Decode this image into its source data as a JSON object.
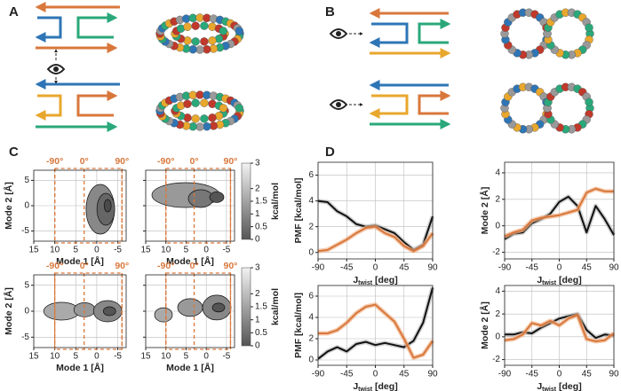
{
  "panel_labels": [
    "A",
    "B",
    "C",
    "D"
  ],
  "chart_data": [
    {
      "type": "contour",
      "xlabel": "Mode 1 [Å]",
      "ylabel": "Mode 2 [Å]",
      "xlim": [
        15,
        -7
      ],
      "ylim": [
        -7,
        7
      ],
      "xticks": [
        15,
        10,
        5,
        0,
        -5
      ],
      "yticks": [
        -5,
        0,
        5
      ],
      "ytick_labels": true,
      "grid": true,
      "angle_marks": [
        {
          "value": 10,
          "label": "-90°"
        },
        {
          "value": 3,
          "label": "0°"
        },
        {
          "value": -6,
          "label": "90°"
        }
      ]
    },
    {
      "type": "contour",
      "xlabel": "Mode 1 [Å]",
      "xlim": [
        15,
        -7
      ],
      "ylim": [
        -7,
        7
      ],
      "xticks": [
        15,
        10,
        5,
        0,
        -5
      ],
      "yticks": [
        -5,
        0,
        5
      ],
      "ytick_labels": false,
      "grid": true,
      "angle_marks": [
        {
          "value": 10,
          "label": "-90°"
        },
        {
          "value": 3,
          "label": "0°"
        },
        {
          "value": -6,
          "label": "90°"
        }
      ],
      "colorbar": {
        "label": "kcal/mol",
        "lim": [
          0,
          3
        ],
        "ticks": [
          0,
          0.5,
          1,
          1.5,
          2,
          3
        ]
      }
    },
    {
      "type": "contour",
      "xlabel": "Mode 1 [Å]",
      "ylabel": "Mode 2 [Å]",
      "xlim": [
        15,
        -7
      ],
      "ylim": [
        -7,
        7
      ],
      "xticks": [
        15,
        10,
        5,
        0,
        -5
      ],
      "yticks": [
        -5,
        0,
        5
      ],
      "ytick_labels": true,
      "grid": true,
      "angle_marks": [
        {
          "value": 10,
          "label": "-90°"
        },
        {
          "value": 3,
          "label": "0°"
        },
        {
          "value": -6,
          "label": "90°"
        }
      ]
    },
    {
      "type": "contour",
      "xlabel": "Mode 1 [Å]",
      "xlim": [
        15,
        -7
      ],
      "ylim": [
        -7,
        7
      ],
      "xticks": [
        15,
        10,
        5,
        0,
        -5
      ],
      "yticks": [
        -5,
        0,
        5
      ],
      "ytick_labels": false,
      "grid": true,
      "angle_marks": [
        {
          "value": 10,
          "label": "-90°"
        },
        {
          "value": 3,
          "label": "0°"
        },
        {
          "value": -6,
          "label": "90°"
        }
      ],
      "colorbar": {
        "label": "kcal/mol",
        "lim": [
          0,
          3
        ],
        "ticks": [
          0,
          0.5,
          1,
          1.5,
          2,
          3
        ]
      }
    },
    {
      "type": "line",
      "xlabel": [
        "J",
        "twist",
        " [deg]"
      ],
      "ylabel": "PMF [kcal/mol]",
      "xlim": [
        -90,
        90
      ],
      "xticks": [
        -90,
        -45,
        0,
        45,
        90
      ],
      "ylim": [
        -0.5,
        7
      ],
      "yticks": [
        0,
        2,
        4,
        6
      ],
      "grid": true,
      "x": [
        -90,
        -75,
        -60,
        -45,
        -30,
        -15,
        0,
        15,
        30,
        45,
        60,
        75,
        90
      ],
      "series": [
        {
          "color": "#111111",
          "values": [
            4,
            3.9,
            3.2,
            2.8,
            2.2,
            2.0,
            2.1,
            1.8,
            1.5,
            0.8,
            0.2,
            0.6,
            2.8
          ]
        },
        {
          "color": "#d9773b",
          "values": [
            0.1,
            0.2,
            0.6,
            1.0,
            1.5,
            1.9,
            2.0,
            1.5,
            1.2,
            0.5,
            0.1,
            0.5,
            1.5
          ]
        }
      ]
    },
    {
      "type": "line",
      "xlabel": [
        "J",
        "twist",
        " [deg]"
      ],
      "ylabel": "Mode 2 [Å]",
      "xlim": [
        -90,
        90
      ],
      "xticks": [
        -90,
        -45,
        0,
        45,
        90
      ],
      "ylim": [
        -2.5,
        4.8
      ],
      "yticks": [
        -2,
        0,
        2,
        4
      ],
      "grid": true,
      "x": [
        -90,
        -75,
        -60,
        -45,
        -30,
        -15,
        0,
        15,
        30,
        45,
        60,
        75,
        90
      ],
      "series": [
        {
          "color": "#111111",
          "values": [
            -1,
            -0.6,
            -0.5,
            0.2,
            0.5,
            0.9,
            1.8,
            2.2,
            1.5,
            -0.5,
            1.5,
            0.5,
            -0.7
          ]
        },
        {
          "color": "#d9773b",
          "values": [
            -0.8,
            -0.5,
            -0.3,
            0.4,
            0.6,
            0.7,
            0.8,
            1.0,
            1.2,
            2.5,
            2.8,
            2.6,
            2.6
          ]
        }
      ]
    },
    {
      "type": "line",
      "xlabel": [
        "J",
        "twist",
        " [deg]"
      ],
      "ylabel": "PMF [kcal/mol]",
      "xlim": [
        -90,
        90
      ],
      "xticks": [
        -90,
        -45,
        0,
        45,
        90
      ],
      "ylim": [
        -0.5,
        7
      ],
      "yticks": [
        0,
        2,
        4,
        6
      ],
      "grid": true,
      "x": [
        -90,
        -75,
        -60,
        -45,
        -30,
        -15,
        0,
        15,
        30,
        45,
        60,
        75,
        90
      ],
      "series": [
        {
          "color": "#111111",
          "values": [
            0.1,
            0.8,
            1.2,
            0.8,
            1.5,
            1.7,
            1.4,
            1.6,
            1.4,
            1.2,
            1.8,
            3.5,
            6.8
          ]
        },
        {
          "color": "#d9773b",
          "values": [
            2.5,
            2.5,
            2.8,
            3.5,
            4.4,
            5.0,
            5.2,
            4.4,
            3.6,
            2.0,
            0.2,
            0.5,
            1.8
          ]
        }
      ]
    },
    {
      "type": "line",
      "xlabel": [
        "J",
        "twist",
        " [deg]"
      ],
      "ylabel": "Mode 2 [Å]",
      "xlim": [
        -90,
        90
      ],
      "xticks": [
        -90,
        -45,
        0,
        45,
        90
      ],
      "ylim": [
        -2.5,
        4.5
      ],
      "yticks": [
        -2,
        0,
        2,
        4
      ],
      "grid": true,
      "x": [
        -90,
        -75,
        -60,
        -45,
        -30,
        -15,
        0,
        15,
        30,
        45,
        60,
        75,
        90
      ],
      "series": [
        {
          "color": "#111111",
          "values": [
            0.2,
            0.2,
            0.4,
            0.3,
            0.8,
            1.2,
            1.6,
            1.8,
            2.0,
            0.6,
            -0.1,
            0.2,
            0.1
          ]
        },
        {
          "color": "#d9773b",
          "values": [
            -0.3,
            -0.2,
            0.2,
            1.2,
            1.0,
            1.4,
            1.0,
            1.6,
            1.9,
            -0.2,
            -0.4,
            -0.3,
            0.3
          ]
        }
      ]
    }
  ]
}
